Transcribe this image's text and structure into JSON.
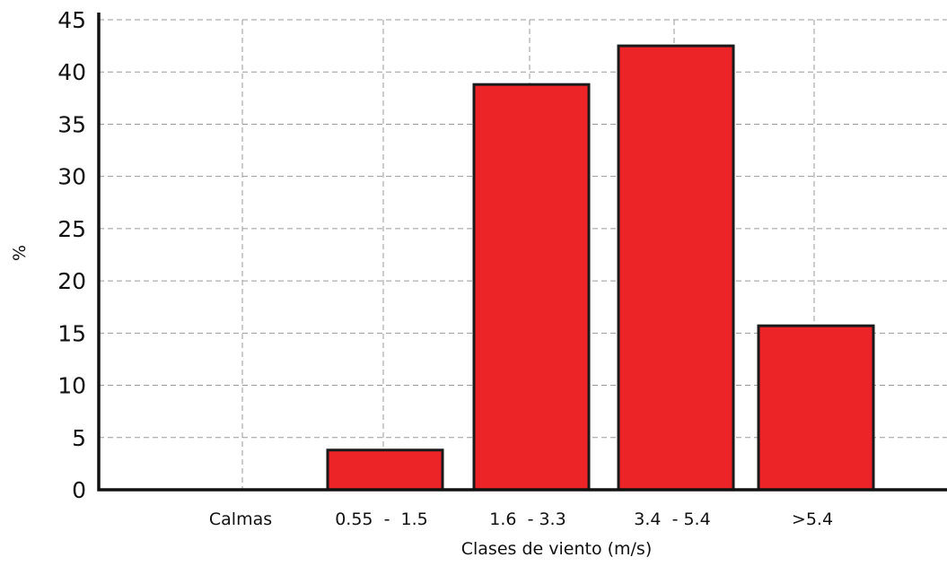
{
  "chart_data": {
    "type": "bar",
    "categories": [
      "Calmas",
      "0.55  -  1.5",
      "1.6  - 3.3",
      "3.4  - 5.4",
      ">5.4"
    ],
    "values": [
      0,
      3.8,
      38.8,
      42.5,
      15.7
    ],
    "xlabel": "Clases de viento (m/s)",
    "ylabel": "%",
    "ylim": [
      0,
      45
    ],
    "yticks": [
      0,
      5,
      10,
      15,
      20,
      25,
      30,
      35,
      40,
      45
    ],
    "grid": true,
    "colors": {
      "bar_fill": "#ec2428",
      "bar_stroke": "#1a1a1a",
      "grid": "#9a9a9a",
      "axis": "#111111"
    }
  }
}
